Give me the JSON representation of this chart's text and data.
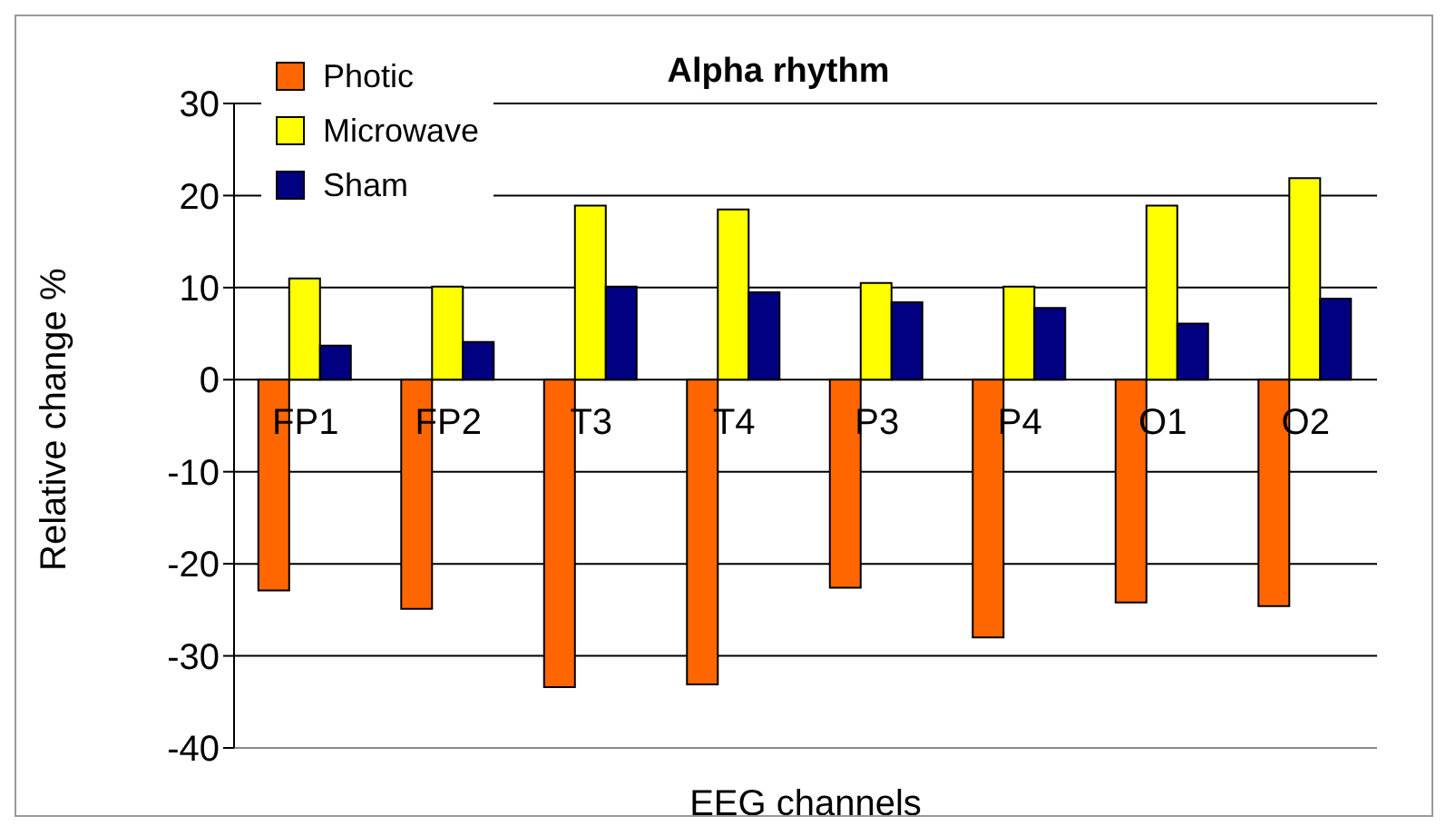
{
  "chart_data": {
    "type": "bar",
    "title": "Alpha rhythm",
    "xlabel": "EEG channels",
    "ylabel": "Relative change %",
    "categories": [
      "FP1",
      "FP2",
      "T3",
      "T4",
      "P3",
      "P4",
      "O1",
      "O2"
    ],
    "series": [
      {
        "name": "Photic",
        "color": "#ff6600",
        "values": [
          -22.9,
          -24.9,
          -33.4,
          -33.1,
          -22.6,
          -28.0,
          -24.2,
          -24.6
        ]
      },
      {
        "name": "Microwave",
        "color": "#ffff00",
        "values": [
          11.0,
          10.1,
          18.9,
          18.5,
          10.5,
          10.1,
          18.9,
          21.9
        ]
      },
      {
        "name": "Sham",
        "color": "#000080",
        "values": [
          3.7,
          4.1,
          10.1,
          9.5,
          8.4,
          7.8,
          6.1,
          8.8
        ]
      }
    ],
    "ylim": [
      -40,
      30
    ],
    "yticks": [
      -40,
      -30,
      -20,
      -10,
      0,
      10,
      20,
      30
    ],
    "grid": "y",
    "legend": "top left"
  }
}
